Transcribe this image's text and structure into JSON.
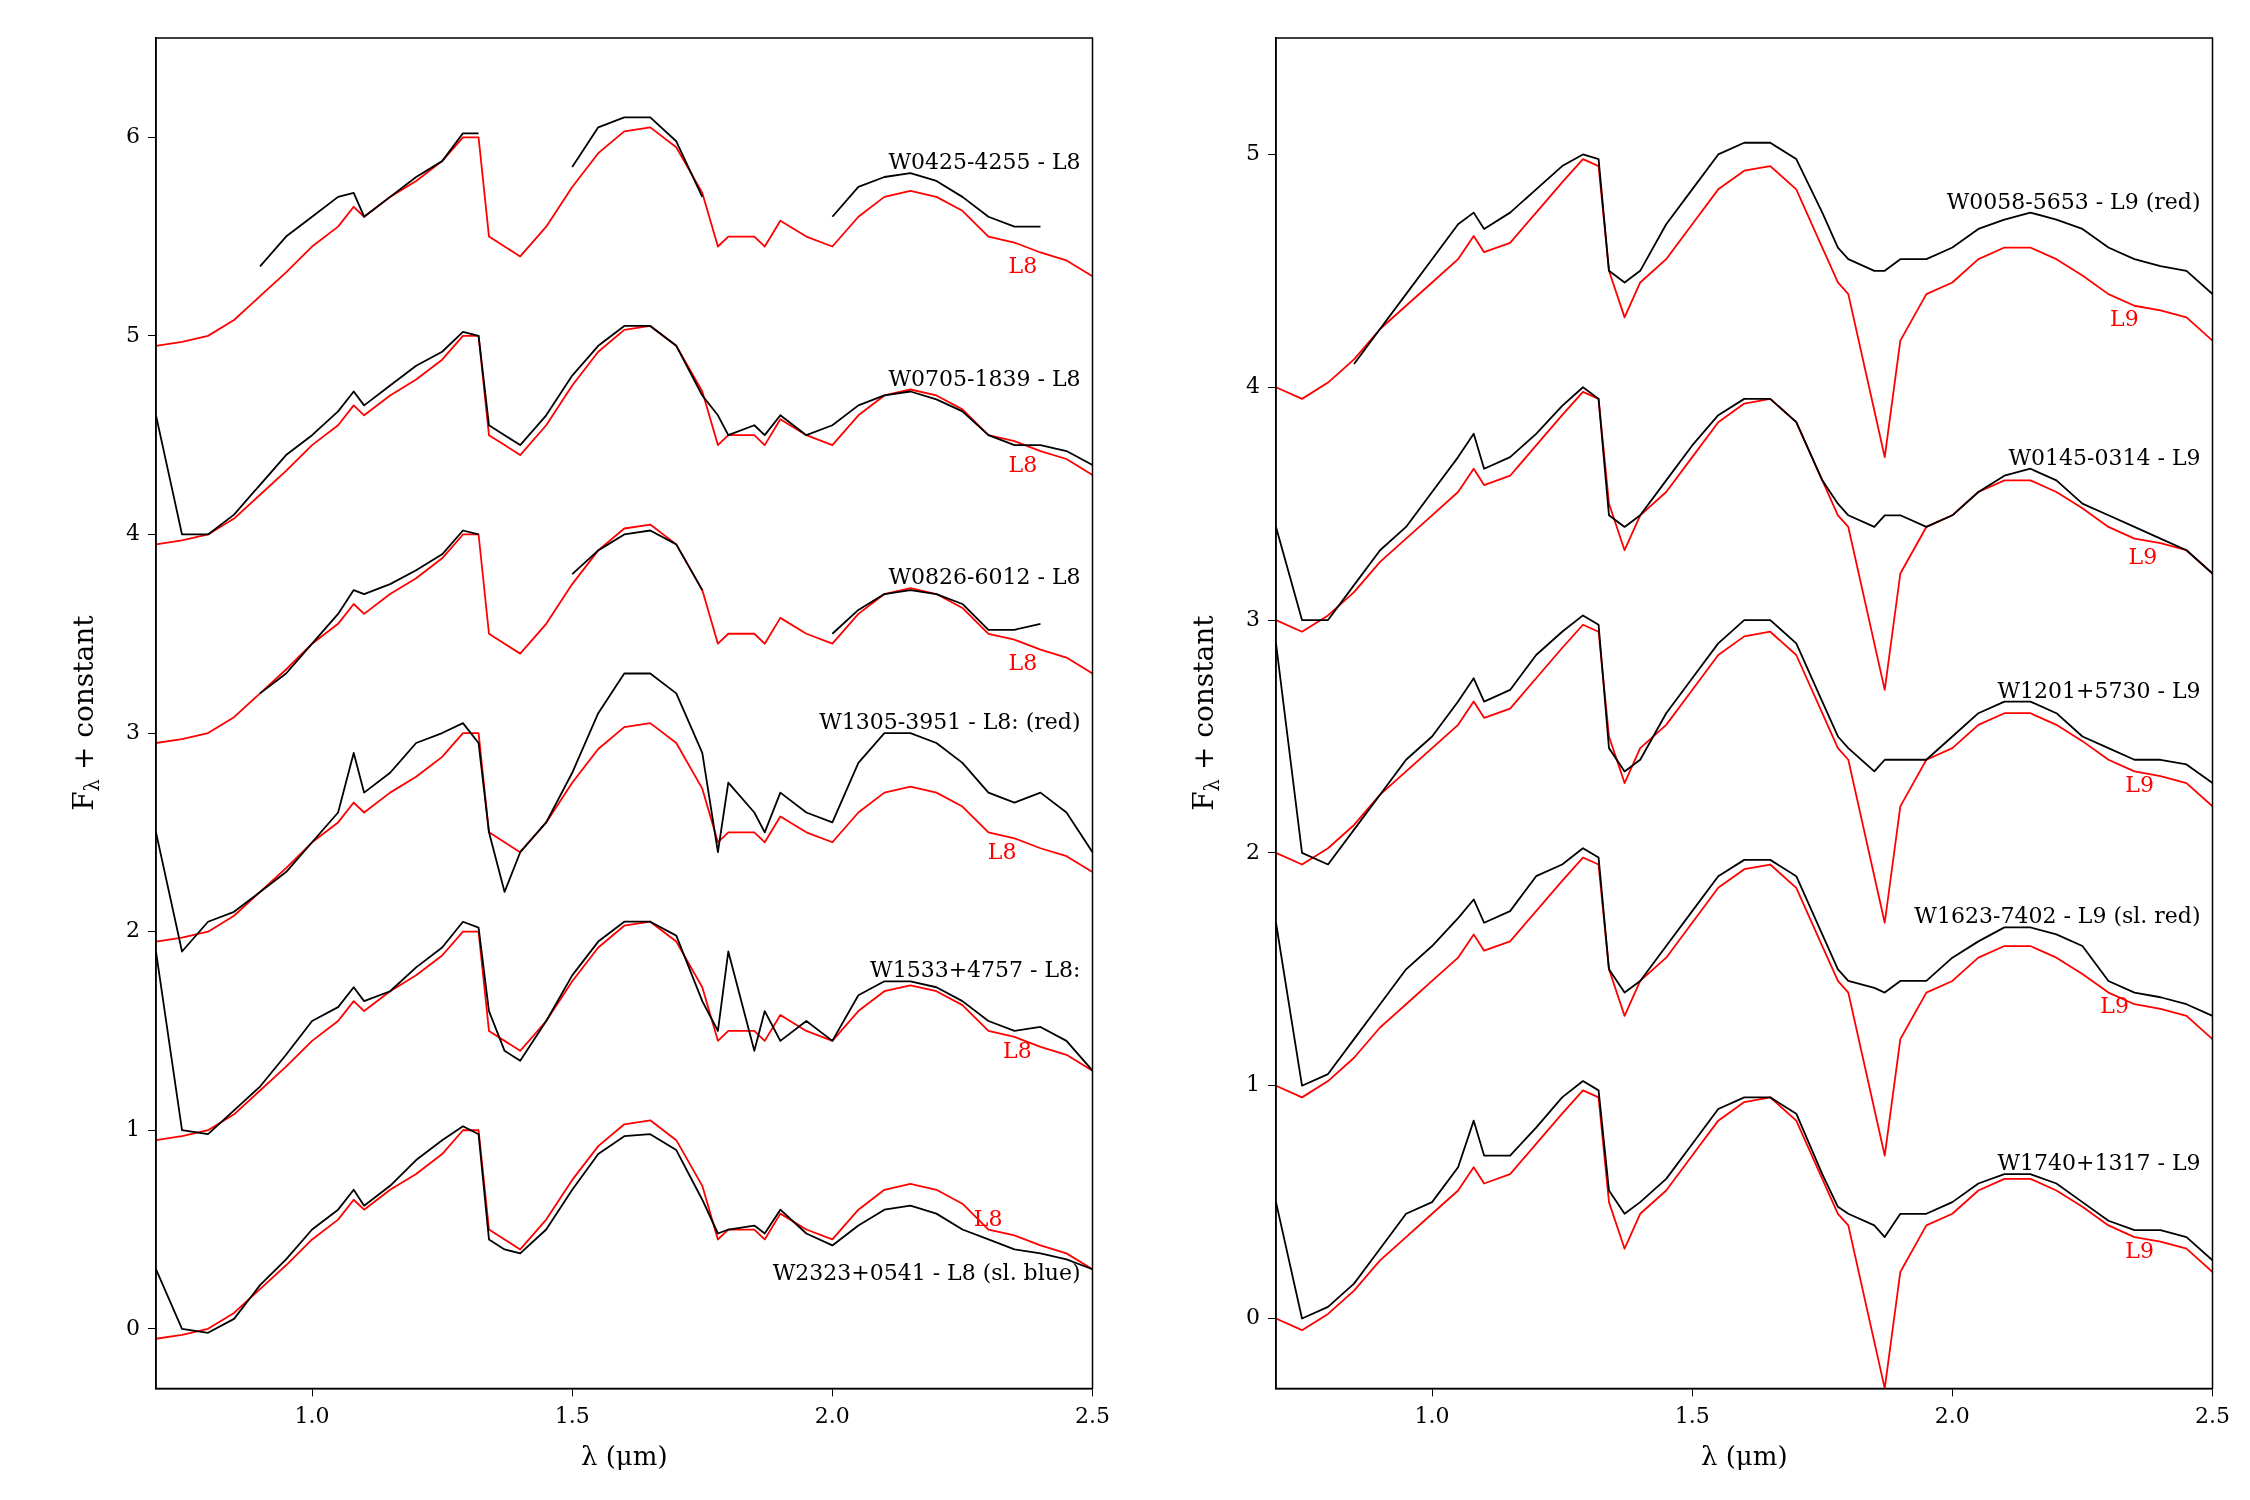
{
  "chart_data": [
    {
      "type": "line",
      "xlabel": "λ (μm)",
      "ylabel": "F$_{λ}$ + constant",
      "xlim": [
        0.7,
        2.5
      ],
      "ylim": [
        -0.3,
        6.5
      ],
      "xticks": [
        {
          "value": 1.0,
          "label": "1.0"
        },
        {
          "value": 1.5,
          "label": "1.5"
        },
        {
          "value": 2.0,
          "label": "2.0"
        },
        {
          "value": 2.5,
          "label": "2.5"
        }
      ],
      "yticks": [
        0,
        1,
        2,
        3,
        4,
        5,
        6
      ],
      "grid": false,
      "x": [
        0.7,
        0.75,
        0.8,
        0.85,
        0.9,
        0.95,
        1.0,
        1.05,
        1.08,
        1.1,
        1.15,
        1.2,
        1.25,
        1.29,
        1.32,
        1.34,
        1.37,
        1.4,
        1.45,
        1.5,
        1.55,
        1.6,
        1.65,
        1.7,
        1.75,
        1.78,
        1.8,
        1.85,
        1.87,
        1.9,
        1.95,
        2.0,
        2.05,
        2.1,
        2.15,
        2.2,
        2.25,
        2.3,
        2.35,
        2.4,
        2.45,
        2.5
      ],
      "series": [
        {
          "name": "W0425-4255 - L8",
          "color": "#000000",
          "values": [
            null,
            null,
            null,
            null,
            5.35,
            5.5,
            5.6,
            5.7,
            5.72,
            5.6,
            5.7,
            5.8,
            5.88,
            6.02,
            6.02,
            null,
            null,
            null,
            null,
            5.85,
            6.05,
            6.1,
            6.1,
            5.98,
            5.7,
            null,
            null,
            null,
            null,
            null,
            null,
            5.6,
            5.75,
            5.8,
            5.82,
            5.78,
            5.7,
            5.6,
            5.55,
            5.55,
            null,
            null
          ]
        },
        {
          "name": "L8",
          "color": "#ff0000",
          "values": [
            4.95,
            4.97,
            5.0,
            5.08,
            5.2,
            5.32,
            5.45,
            5.55,
            5.65,
            5.6,
            5.7,
            5.78,
            5.88,
            6.0,
            6.0,
            5.5,
            5.45,
            5.4,
            5.55,
            5.75,
            5.92,
            6.03,
            6.05,
            5.95,
            5.72,
            5.45,
            5.5,
            5.5,
            5.45,
            5.58,
            5.5,
            5.45,
            5.6,
            5.7,
            5.73,
            5.7,
            5.63,
            5.5,
            5.47,
            5.42,
            5.38,
            5.3
          ]
        },
        {
          "name": "W0705-1839 - L8",
          "color": "#000000",
          "values": [
            4.6,
            4.0,
            4.0,
            4.1,
            4.25,
            4.4,
            4.5,
            4.62,
            4.72,
            4.65,
            4.75,
            4.85,
            4.92,
            5.02,
            5.0,
            4.55,
            4.5,
            4.45,
            4.6,
            4.8,
            4.95,
            5.05,
            5.05,
            4.95,
            4.7,
            4.6,
            4.5,
            4.55,
            4.5,
            4.6,
            4.5,
            4.55,
            4.65,
            4.7,
            4.72,
            4.68,
            4.62,
            4.5,
            4.45,
            4.45,
            4.42,
            4.35
          ]
        },
        {
          "name": "L8",
          "color": "#ff0000",
          "values": [
            3.95,
            3.97,
            4.0,
            4.08,
            4.2,
            4.32,
            4.45,
            4.55,
            4.65,
            4.6,
            4.7,
            4.78,
            4.88,
            5.0,
            5.0,
            4.5,
            4.45,
            4.4,
            4.55,
            4.75,
            4.92,
            5.03,
            5.05,
            4.95,
            4.72,
            4.45,
            4.5,
            4.5,
            4.45,
            4.58,
            4.5,
            4.45,
            4.6,
            4.7,
            4.73,
            4.7,
            4.63,
            4.5,
            4.47,
            4.42,
            4.38,
            4.3
          ]
        },
        {
          "name": "W0826-6012 - L8",
          "color": "#000000",
          "values": [
            null,
            null,
            null,
            null,
            3.2,
            3.3,
            3.45,
            3.6,
            3.72,
            3.7,
            3.75,
            3.82,
            3.9,
            4.02,
            4.0,
            null,
            null,
            null,
            null,
            3.8,
            3.92,
            4.0,
            4.02,
            3.95,
            3.72,
            null,
            null,
            null,
            null,
            null,
            null,
            3.5,
            3.62,
            3.7,
            3.72,
            3.7,
            3.65,
            3.52,
            3.52,
            3.55,
            null,
            null
          ]
        },
        {
          "name": "L8",
          "color": "#ff0000",
          "values": [
            2.95,
            2.97,
            3.0,
            3.08,
            3.2,
            3.32,
            3.45,
            3.55,
            3.65,
            3.6,
            3.7,
            3.78,
            3.88,
            4.0,
            4.0,
            3.5,
            3.45,
            3.4,
            3.55,
            3.75,
            3.92,
            4.03,
            4.05,
            3.95,
            3.72,
            3.45,
            3.5,
            3.5,
            3.45,
            3.58,
            3.5,
            3.45,
            3.6,
            3.7,
            3.73,
            3.7,
            3.63,
            3.5,
            3.47,
            3.42,
            3.38,
            3.3
          ]
        },
        {
          "name": "W1305-3951 - L8: (red)",
          "color": "#000000",
          "values": [
            2.5,
            1.9,
            2.05,
            2.1,
            2.2,
            2.3,
            2.45,
            2.6,
            2.9,
            2.7,
            2.8,
            2.95,
            3.0,
            3.05,
            2.95,
            2.5,
            2.2,
            2.4,
            2.55,
            2.8,
            3.1,
            3.3,
            3.3,
            3.2,
            2.9,
            2.4,
            2.75,
            2.6,
            2.5,
            2.7,
            2.6,
            2.55,
            2.85,
            3.0,
            3.0,
            2.95,
            2.85,
            2.7,
            2.65,
            2.7,
            2.6,
            2.4
          ]
        },
        {
          "name": "L8",
          "color": "#ff0000",
          "values": [
            1.95,
            1.97,
            2.0,
            2.08,
            2.2,
            2.32,
            2.45,
            2.55,
            2.65,
            2.6,
            2.7,
            2.78,
            2.88,
            3.0,
            3.0,
            2.5,
            2.45,
            2.4,
            2.55,
            2.75,
            2.92,
            3.03,
            3.05,
            2.95,
            2.72,
            2.45,
            2.5,
            2.5,
            2.45,
            2.58,
            2.5,
            2.45,
            2.6,
            2.7,
            2.73,
            2.7,
            2.63,
            2.5,
            2.47,
            2.42,
            2.38,
            2.3
          ]
        },
        {
          "name": "W1533+4757 - L8:",
          "color": "#000000",
          "values": [
            1.9,
            1.0,
            0.98,
            1.1,
            1.22,
            1.38,
            1.55,
            1.62,
            1.72,
            1.65,
            1.7,
            1.82,
            1.92,
            2.05,
            2.02,
            1.6,
            1.4,
            1.35,
            1.55,
            1.78,
            1.95,
            2.05,
            2.05,
            1.98,
            1.65,
            1.5,
            1.9,
            1.4,
            1.6,
            1.45,
            1.55,
            1.45,
            1.68,
            1.75,
            1.75,
            1.72,
            1.65,
            1.55,
            1.5,
            1.52,
            1.45,
            1.3
          ]
        },
        {
          "name": "L8",
          "color": "#ff0000",
          "values": [
            0.95,
            0.97,
            1.0,
            1.08,
            1.2,
            1.32,
            1.45,
            1.55,
            1.65,
            1.6,
            1.7,
            1.78,
            1.88,
            2.0,
            2.0,
            1.5,
            1.45,
            1.4,
            1.55,
            1.75,
            1.92,
            2.03,
            2.05,
            1.95,
            1.72,
            1.45,
            1.5,
            1.5,
            1.45,
            1.58,
            1.5,
            1.45,
            1.6,
            1.7,
            1.73,
            1.7,
            1.63,
            1.5,
            1.47,
            1.42,
            1.38,
            1.3
          ]
        },
        {
          "name": "W2323+0541 - L8 (sl. blue)",
          "color": "#000000",
          "values": [
            0.3,
            0.0,
            -0.02,
            0.05,
            0.22,
            0.35,
            0.5,
            0.6,
            0.7,
            0.62,
            0.72,
            0.85,
            0.95,
            1.02,
            0.98,
            0.45,
            0.4,
            0.38,
            0.5,
            0.7,
            0.88,
            0.97,
            0.98,
            0.9,
            0.65,
            0.48,
            0.5,
            0.52,
            0.48,
            0.6,
            0.48,
            0.42,
            0.52,
            0.6,
            0.62,
            0.58,
            0.5,
            0.45,
            0.4,
            0.38,
            0.35,
            0.3
          ]
        },
        {
          "name": "L8",
          "color": "#ff0000",
          "values": [
            -0.05,
            -0.03,
            0.0,
            0.08,
            0.2,
            0.32,
            0.45,
            0.55,
            0.65,
            0.6,
            0.7,
            0.78,
            0.88,
            1.0,
            1.0,
            0.5,
            0.45,
            0.4,
            0.55,
            0.75,
            0.92,
            1.03,
            1.05,
            0.95,
            0.72,
            0.45,
            0.5,
            0.5,
            0.45,
            0.58,
            0.5,
            0.45,
            0.6,
            0.7,
            0.73,
            0.7,
            0.63,
            0.5,
            0.47,
            0.42,
            0.38,
            0.3
          ]
        }
      ]
    },
    {
      "type": "line",
      "xlabel": "λ (μm)",
      "ylabel": "F$_{λ}$ + constant",
      "xlim": [
        0.7,
        2.5
      ],
      "ylim": [
        -0.3,
        5.5
      ],
      "xticks": [
        {
          "value": 1.0,
          "label": "1.0"
        },
        {
          "value": 1.5,
          "label": "1.5"
        },
        {
          "value": 2.0,
          "label": "2.0"
        },
        {
          "value": 2.5,
          "label": "2.5"
        }
      ],
      "yticks": [
        0,
        1,
        2,
        3,
        4,
        5
      ],
      "grid": false,
      "x": [
        0.7,
        0.75,
        0.8,
        0.85,
        0.9,
        0.95,
        1.0,
        1.05,
        1.08,
        1.1,
        1.15,
        1.2,
        1.25,
        1.29,
        1.32,
        1.34,
        1.37,
        1.4,
        1.45,
        1.5,
        1.55,
        1.6,
        1.65,
        1.7,
        1.75,
        1.78,
        1.8,
        1.85,
        1.87,
        1.9,
        1.95,
        2.0,
        2.05,
        2.1,
        2.15,
        2.2,
        2.25,
        2.3,
        2.35,
        2.4,
        2.45,
        2.5
      ],
      "series": [
        {
          "name": "W0058-5653 - L9 (red)",
          "color": "#000000",
          "values": [
            null,
            null,
            null,
            4.1,
            4.25,
            4.4,
            4.55,
            4.7,
            4.75,
            4.68,
            4.75,
            4.85,
            4.95,
            5.0,
            4.98,
            4.5,
            4.45,
            4.5,
            4.7,
            4.85,
            5.0,
            5.05,
            5.05,
            4.98,
            4.75,
            4.6,
            4.55,
            4.5,
            4.5,
            4.55,
            4.55,
            4.6,
            4.68,
            4.72,
            4.75,
            4.72,
            4.68,
            4.6,
            4.55,
            4.52,
            4.5,
            4.4
          ]
        },
        {
          "name": "L9",
          "color": "#ff0000",
          "values": [
            4.0,
            3.95,
            4.02,
            4.12,
            4.25,
            4.35,
            4.45,
            4.55,
            4.65,
            4.58,
            4.62,
            4.75,
            4.88,
            4.98,
            4.95,
            4.5,
            4.3,
            4.45,
            4.55,
            4.7,
            4.85,
            4.93,
            4.95,
            4.85,
            4.6,
            4.45,
            4.4,
            3.9,
            3.7,
            4.2,
            4.4,
            4.45,
            4.55,
            4.6,
            4.6,
            4.55,
            4.48,
            4.4,
            4.35,
            4.33,
            4.3,
            4.2
          ]
        },
        {
          "name": "W0145-0314 - L9",
          "color": "#000000",
          "values": [
            3.4,
            3.0,
            3.0,
            3.15,
            3.3,
            3.4,
            3.55,
            3.7,
            3.8,
            3.65,
            3.7,
            3.8,
            3.92,
            4.0,
            3.95,
            3.45,
            3.4,
            3.45,
            3.6,
            3.75,
            3.88,
            3.95,
            3.95,
            3.85,
            3.6,
            3.5,
            3.45,
            3.4,
            3.45,
            3.45,
            3.4,
            3.45,
            3.55,
            3.62,
            3.65,
            3.6,
            3.5,
            3.45,
            3.4,
            3.35,
            3.3,
            3.2
          ]
        },
        {
          "name": "L9",
          "color": "#ff0000",
          "values": [
            3.0,
            2.95,
            3.02,
            3.12,
            3.25,
            3.35,
            3.45,
            3.55,
            3.65,
            3.58,
            3.62,
            3.75,
            3.88,
            3.98,
            3.95,
            3.5,
            3.3,
            3.45,
            3.55,
            3.7,
            3.85,
            3.93,
            3.95,
            3.85,
            3.6,
            3.45,
            3.4,
            2.9,
            2.7,
            3.2,
            3.4,
            3.45,
            3.55,
            3.6,
            3.6,
            3.55,
            3.48,
            3.4,
            3.35,
            3.33,
            3.3,
            3.2
          ]
        },
        {
          "name": "W1201+5730 - L9",
          "color": "#000000",
          "values": [
            2.9,
            2.0,
            1.95,
            2.1,
            2.25,
            2.4,
            2.5,
            2.65,
            2.75,
            2.65,
            2.7,
            2.85,
            2.95,
            3.02,
            2.98,
            2.45,
            2.35,
            2.4,
            2.6,
            2.75,
            2.9,
            3.0,
            3.0,
            2.9,
            2.65,
            2.5,
            2.45,
            2.35,
            2.4,
            2.4,
            2.4,
            2.5,
            2.6,
            2.65,
            2.65,
            2.6,
            2.5,
            2.45,
            2.4,
            2.4,
            2.38,
            2.3
          ]
        },
        {
          "name": "L9",
          "color": "#ff0000",
          "values": [
            2.0,
            1.95,
            2.02,
            2.12,
            2.25,
            2.35,
            2.45,
            2.55,
            2.65,
            2.58,
            2.62,
            2.75,
            2.88,
            2.98,
            2.95,
            2.5,
            2.3,
            2.45,
            2.55,
            2.7,
            2.85,
            2.93,
            2.95,
            2.85,
            2.6,
            2.45,
            2.4,
            1.9,
            1.7,
            2.2,
            2.4,
            2.45,
            2.55,
            2.6,
            2.6,
            2.55,
            2.48,
            2.4,
            2.35,
            2.33,
            2.3,
            2.2
          ]
        },
        {
          "name": "W1623-7402 - L9 (sl. red)",
          "color": "#000000",
          "values": [
            1.7,
            1.0,
            1.05,
            1.2,
            1.35,
            1.5,
            1.6,
            1.72,
            1.8,
            1.7,
            1.75,
            1.9,
            1.95,
            2.02,
            1.98,
            1.5,
            1.4,
            1.45,
            1.6,
            1.75,
            1.9,
            1.97,
            1.97,
            1.9,
            1.65,
            1.5,
            1.45,
            1.42,
            1.4,
            1.45,
            1.45,
            1.55,
            1.62,
            1.68,
            1.68,
            1.65,
            1.6,
            1.45,
            1.4,
            1.38,
            1.35,
            1.3
          ]
        },
        {
          "name": "L9",
          "color": "#ff0000",
          "values": [
            1.0,
            0.95,
            1.02,
            1.12,
            1.25,
            1.35,
            1.45,
            1.55,
            1.65,
            1.58,
            1.62,
            1.75,
            1.88,
            1.98,
            1.95,
            1.5,
            1.3,
            1.45,
            1.55,
            1.7,
            1.85,
            1.93,
            1.95,
            1.85,
            1.6,
            1.45,
            1.4,
            0.9,
            0.7,
            1.2,
            1.4,
            1.45,
            1.55,
            1.6,
            1.6,
            1.55,
            1.48,
            1.4,
            1.35,
            1.33,
            1.3,
            1.2
          ]
        },
        {
          "name": "W1740+1317 - L9",
          "color": "#000000",
          "values": [
            0.5,
            0.0,
            0.05,
            0.15,
            0.3,
            0.45,
            0.5,
            0.65,
            0.85,
            0.7,
            0.7,
            0.82,
            0.95,
            1.02,
            0.98,
            0.55,
            0.45,
            0.5,
            0.6,
            0.75,
            0.9,
            0.95,
            0.95,
            0.88,
            0.62,
            0.48,
            0.45,
            0.4,
            0.35,
            0.45,
            0.45,
            0.5,
            0.58,
            0.62,
            0.62,
            0.58,
            0.5,
            0.42,
            0.38,
            0.38,
            0.35,
            0.25
          ]
        },
        {
          "name": "L9",
          "color": "#ff0000",
          "values": [
            0.0,
            -0.05,
            0.02,
            0.12,
            0.25,
            0.35,
            0.45,
            0.55,
            0.65,
            0.58,
            0.62,
            0.75,
            0.88,
            0.98,
            0.95,
            0.5,
            0.3,
            0.45,
            0.55,
            0.7,
            0.85,
            0.93,
            0.95,
            0.85,
            0.6,
            0.45,
            0.4,
            -0.1,
            -0.3,
            0.2,
            0.4,
            0.45,
            0.55,
            0.6,
            0.6,
            0.55,
            0.48,
            0.4,
            0.35,
            0.33,
            0.3,
            0.2
          ]
        }
      ]
    }
  ]
}
